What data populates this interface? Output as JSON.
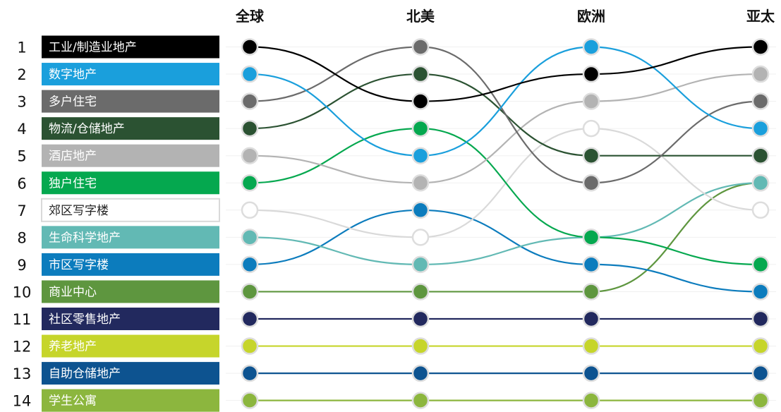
{
  "chart_data": {
    "type": "bump",
    "columns": [
      "全球",
      "北美",
      "欧洲",
      "亚太"
    ],
    "ranks": [
      1,
      2,
      3,
      4,
      5,
      6,
      7,
      8,
      9,
      10,
      11,
      12,
      13,
      14
    ],
    "series": [
      {
        "name": "工业/制造业地产",
        "color": "#000000",
        "text_color": "#ffffff",
        "ranks": [
          1,
          3,
          2,
          1
        ]
      },
      {
        "name": "数字地产",
        "color": "#1a9fdc",
        "text_color": "#ffffff",
        "ranks": [
          2,
          5,
          1,
          4
        ]
      },
      {
        "name": "多户住宅",
        "color": "#6b6b6b",
        "text_color": "#ffffff",
        "ranks": [
          3,
          1,
          6,
          3
        ]
      },
      {
        "name": "物流/仓储地产",
        "color": "#2b5232",
        "text_color": "#ffffff",
        "ranks": [
          4,
          2,
          5,
          5
        ]
      },
      {
        "name": "酒店地产",
        "color": "#b3b3b3",
        "text_color": "#ffffff",
        "ranks": [
          5,
          6,
          3,
          2
        ]
      },
      {
        "name": "独户住宅",
        "color": "#05a84f",
        "text_color": "#ffffff",
        "ranks": [
          6,
          4,
          8,
          9
        ]
      },
      {
        "name": "郊区写字楼",
        "color": "#ffffff",
        "text_color": "#222222",
        "stroke": "#d9d9d9",
        "ranks": [
          7,
          8,
          4,
          7
        ]
      },
      {
        "name": "生命科学地产",
        "color": "#62b9b4",
        "text_color": "#ffffff",
        "ranks": [
          8,
          9,
          8,
          6
        ]
      },
      {
        "name": "市区写字楼",
        "color": "#0c7cbd",
        "text_color": "#ffffff",
        "ranks": [
          9,
          7,
          9,
          10
        ]
      },
      {
        "name": "商业中心",
        "color": "#5e963f",
        "text_color": "#ffffff",
        "ranks": [
          10,
          10,
          10,
          6
        ]
      },
      {
        "name": "社区零售地产",
        "color": "#22295e",
        "text_color": "#ffffff",
        "ranks": [
          11,
          11,
          11,
          11
        ]
      },
      {
        "name": "养老地产",
        "color": "#c6d52b",
        "text_color": "#ffffff",
        "ranks": [
          12,
          12,
          12,
          12
        ]
      },
      {
        "name": "自助仓储地产",
        "color": "#0d5390",
        "text_color": "#ffffff",
        "ranks": [
          13,
          13,
          13,
          13
        ]
      },
      {
        "name": "学生公寓",
        "color": "#8cb63e",
        "text_color": "#ffffff",
        "ranks": [
          14,
          14,
          14,
          14
        ]
      }
    ]
  }
}
